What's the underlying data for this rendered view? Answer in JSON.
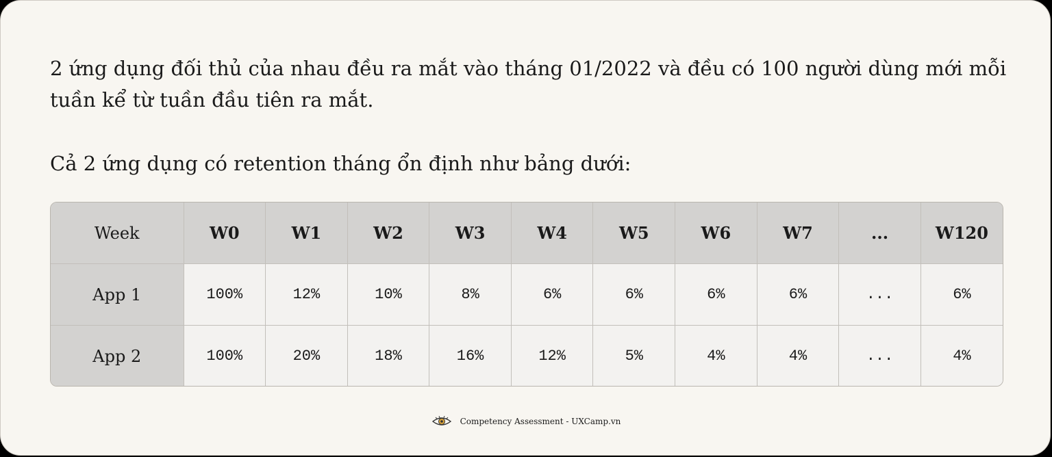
{
  "intro": {
    "line1": "2 ứng dụng đối thủ của nhau đều ra mắt vào tháng 01/2022 và đều có 100 người dùng mới mỗi",
    "line2": "tuần kể từ tuần đầu tiên ra mắt.",
    "line3": "Cả 2 ứng dụng có retention tháng ổn định như bảng dưới:"
  },
  "table": {
    "header": [
      "Week",
      "W0",
      "W1",
      "W2",
      "W3",
      "W4",
      "W5",
      "W6",
      "W7",
      "...",
      "W120"
    ],
    "rows": [
      {
        "label": "App 1",
        "values": [
          "100%",
          "12%",
          "10%",
          "8%",
          "6%",
          "6%",
          "6%",
          "6%",
          "...",
          "6%"
        ]
      },
      {
        "label": "App 2",
        "values": [
          "100%",
          "20%",
          "18%",
          "16%",
          "12%",
          "5%",
          "4%",
          "4%",
          "...",
          "4%"
        ]
      }
    ]
  },
  "footer": {
    "text": "Competency Assessment - UXCamp.vn",
    "icon": "eye-logo-icon"
  }
}
